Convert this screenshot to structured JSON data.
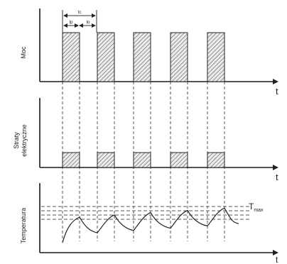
{
  "panels": {
    "power": {
      "ylabel": "Moc",
      "t_label": "t"
    },
    "losses": {
      "ylabel_line1": "Straty",
      "ylabel_line2": "elektryczne",
      "t_label": "t"
    },
    "temperature": {
      "ylabel": "Temperatura",
      "t_label": "t",
      "tmax_label": "T",
      "tmax_sub": "max"
    }
  },
  "period_annotation": {
    "period": "tc",
    "on": "tp",
    "off": "to"
  },
  "pulse_count": 5,
  "colors": {
    "line": "#222222",
    "hatch": "#555555",
    "background": "#ffffff"
  }
}
